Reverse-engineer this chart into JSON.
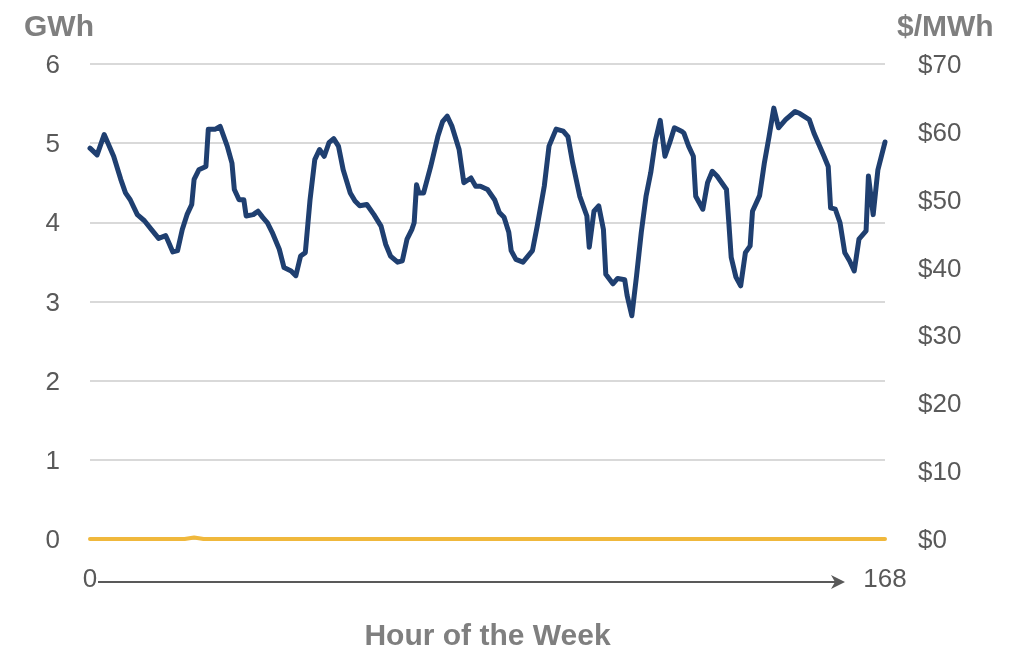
{
  "chart_data": {
    "type": "line",
    "xlabel": "Hour of the Week",
    "ylabel": "GWh",
    "y2label": "$/MWh",
    "xlim": [
      0,
      168
    ],
    "xticks": [
      0,
      168
    ],
    "ylim": [
      0,
      6
    ],
    "yticks": [
      0,
      1,
      2,
      3,
      4,
      5,
      6
    ],
    "y2lim": [
      0,
      70
    ],
    "y2ticks": [
      {
        "value": 0,
        "label": "$0"
      },
      {
        "value": 10,
        "label": "$10"
      },
      {
        "value": 20,
        "label": "$20"
      },
      {
        "value": 30,
        "label": "$30"
      },
      {
        "value": 40,
        "label": "$40"
      },
      {
        "value": 50,
        "label": "$50"
      },
      {
        "value": 60,
        "label": "$60"
      },
      {
        "value": 70,
        "label": "$70"
      }
    ],
    "grid": "y",
    "marker": "none",
    "line_style": "solid",
    "series": [
      {
        "color": "#1f3f70",
        "axis": "y2",
        "x": [
          0,
          1.5,
          3,
          5,
          6.5,
          7.5,
          8.5,
          10,
          11.5,
          13,
          14.5,
          16,
          16.5,
          17.5,
          18.5,
          19.5,
          20.5,
          21.5,
          22,
          23,
          24.5,
          25,
          26.5,
          27.5,
          29,
          30,
          30.5,
          31.5,
          32.5,
          33,
          34.5,
          35.5,
          36.5,
          37.5,
          38.5,
          40,
          41,
          42.5,
          43.5,
          44.5,
          45.5,
          46.5,
          47.5,
          48.5,
          49.5,
          50.5,
          51.5,
          52.5,
          53.5,
          55,
          56,
          57,
          58.5,
          60,
          61.5,
          62.5,
          63.5,
          65,
          66,
          67,
          68,
          68.5,
          69,
          69.5,
          70.5,
          72,
          73.5,
          74.5,
          75.5,
          76.5,
          78,
          79,
          80.5,
          81.5,
          82.5,
          84,
          85.5,
          86.5,
          87.5,
          88.5,
          89,
          90,
          91.5,
          93.5,
          94.5,
          96,
          97,
          98.5,
          100,
          101,
          102,
          103.5,
          105,
          105.5,
          106.5,
          107.5,
          108.5,
          109,
          110.5,
          111.5,
          113,
          113.5,
          114.5,
          115.5,
          116.5,
          117.5,
          118.5,
          119.5,
          120.5,
          121.5,
          122.5,
          123.5,
          125,
          125.5,
          126.5,
          127.5,
          128,
          129.5,
          130.5,
          131.5,
          132.5,
          133.5,
          134.5,
          135,
          135.5,
          136.5,
          137.5,
          138.5,
          139.5,
          140,
          141.5,
          142.5,
          143.5,
          144.5,
          145.5,
          147,
          149,
          150,
          152,
          153,
          155,
          156,
          156.5,
          157.5,
          158.5,
          159.5,
          160.5,
          161.5,
          162.5,
          164,
          164.5,
          165.5,
          166.5,
          168
        ],
        "values": [
          57.6,
          56.6,
          59.6,
          56.4,
          53.0,
          51.0,
          50.0,
          47.8,
          46.9,
          45.6,
          44.3,
          44.7,
          43.9,
          42.3,
          42.5,
          45.6,
          47.8,
          49.3,
          53.0,
          54.4,
          54.9,
          60.4,
          60.4,
          60.8,
          57.9,
          55.4,
          51.5,
          50.0,
          50.0,
          47.6,
          47.8,
          48.3,
          47.4,
          46.6,
          45.2,
          42.7,
          40.0,
          39.5,
          38.8,
          41.7,
          42.2,
          50.0,
          55.9,
          57.4,
          56.4,
          58.4,
          59.0,
          57.9,
          54.4,
          51.0,
          49.8,
          49.1,
          49.3,
          47.8,
          46.1,
          43.4,
          41.7,
          40.8,
          41.0,
          44.2,
          45.6,
          46.6,
          52.2,
          51.0,
          51.0,
          54.9,
          59.3,
          61.5,
          62.3,
          60.8,
          57.4,
          52.5,
          53.2,
          52.0,
          52.0,
          51.5,
          50.0,
          48.1,
          47.4,
          45.2,
          42.5,
          41.2,
          40.8,
          42.5,
          46.1,
          52.0,
          57.9,
          60.4,
          60.1,
          59.3,
          55.4,
          50.5,
          47.6,
          43.0,
          48.3,
          49.1,
          45.6,
          39.0,
          37.6,
          38.4,
          38.2,
          35.9,
          32.9,
          38.8,
          45.2,
          50.5,
          54.0,
          58.8,
          61.7,
          56.4,
          58.4,
          60.6,
          60.1,
          59.8,
          57.9,
          56.4,
          50.5,
          48.6,
          52.5,
          54.2,
          53.5,
          52.5,
          51.5,
          46.6,
          41.5,
          38.6,
          37.3,
          42.2,
          43.2,
          48.3,
          50.6,
          55.4,
          59.3,
          63.5,
          60.6,
          61.8,
          63.0,
          62.7,
          61.8,
          59.8,
          56.6,
          54.9,
          48.8,
          48.6,
          46.6,
          42.2,
          41.0,
          39.5,
          44.2,
          45.4,
          53.5,
          47.8,
          54.4,
          58.5
        ]
      },
      {
        "color": "#f0b83c",
        "x": [
          0,
          20,
          22,
          24,
          168
        ],
        "values": [
          0,
          0,
          0.02,
          0,
          0
        ]
      }
    ]
  }
}
